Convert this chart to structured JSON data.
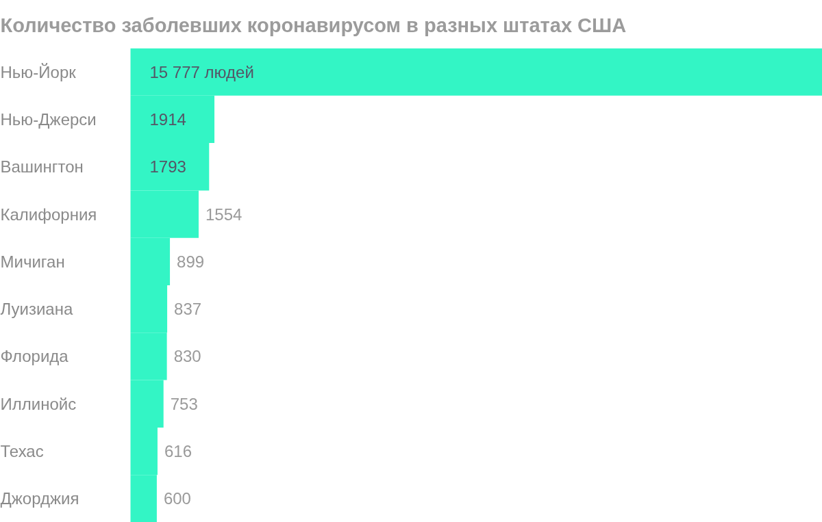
{
  "chart_data": {
    "type": "bar",
    "orientation": "horizontal",
    "title": "Количество заболевших коронавирусом в разных штатах США",
    "categories": [
      "Нью-Йорк",
      "Нью-Джерси",
      "Вашингтон",
      "Калифорния",
      "Мичиган",
      "Луизиана",
      "Флорида",
      "Иллинойс",
      "Техас",
      "Джорджия"
    ],
    "values": [
      15777,
      1914,
      1793,
      1554,
      899,
      837,
      830,
      753,
      616,
      600
    ],
    "value_labels": [
      "15 777 людей",
      "1914",
      "1793",
      "1554",
      "899",
      "837",
      "830",
      "753",
      "616",
      "600"
    ],
    "color": "#33f5c5",
    "grid": false
  }
}
